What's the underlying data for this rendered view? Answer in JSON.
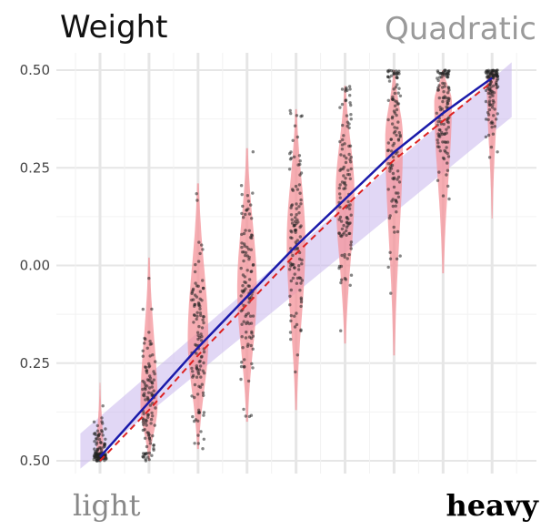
{
  "chart_data": {
    "type": "violin-scatter",
    "title": "Weight",
    "subtitle": "Quadratic",
    "xlabel_left": "light",
    "xlabel_right": "heavy",
    "ylabel": "",
    "ylim": [
      -0.5,
      0.5
    ],
    "yticks": [
      -0.5,
      -0.25,
      0.0,
      0.25,
      0.5
    ],
    "ytick_labels": [
      "0.50",
      "0.25",
      "0.00",
      "0.25",
      "0.50"
    ],
    "x_levels": [
      1,
      2,
      3,
      4,
      5,
      6,
      7,
      8,
      9
    ],
    "xlim": [
      0.1,
      10.0
    ],
    "violins": [
      {
        "x": 1,
        "center": -0.49,
        "low": -0.5,
        "high": -0.3,
        "width": 0.15
      },
      {
        "x": 2,
        "center": -0.36,
        "low": -0.5,
        "high": 0.02,
        "width": 0.35
      },
      {
        "x": 3,
        "center": -0.19,
        "low": -0.47,
        "high": 0.21,
        "width": 0.42
      },
      {
        "x": 4,
        "center": -0.06,
        "low": -0.4,
        "high": 0.3,
        "width": 0.4
      },
      {
        "x": 5,
        "center": 0.06,
        "low": -0.37,
        "high": 0.4,
        "width": 0.38
      },
      {
        "x": 6,
        "center": 0.19,
        "low": -0.2,
        "high": 0.46,
        "width": 0.38
      },
      {
        "x": 7,
        "center": 0.33,
        "low": -0.23,
        "high": 0.5,
        "width": 0.36
      },
      {
        "x": 8,
        "center": 0.42,
        "low": -0.02,
        "high": 0.5,
        "width": 0.36
      },
      {
        "x": 9,
        "center": 0.48,
        "low": 0.12,
        "high": 0.5,
        "width": 0.22
      }
    ],
    "quadratic_fit": {
      "x": [
        1,
        2,
        3,
        4,
        5,
        6,
        7,
        8,
        9
      ],
      "y": [
        -0.49,
        -0.35,
        -0.21,
        -0.08,
        0.05,
        0.17,
        0.29,
        0.39,
        0.48
      ]
    },
    "dashed_fit": {
      "x": [
        1,
        2,
        3,
        4,
        5,
        6,
        7,
        8,
        9
      ],
      "y": [
        -0.5,
        -0.37,
        -0.23,
        -0.1,
        0.03,
        0.15,
        0.27,
        0.37,
        0.47
      ]
    },
    "confidence_band": {
      "x": [
        0.6,
        9.4
      ],
      "lower": [
        -0.52,
        0.38
      ],
      "upper": [
        -0.43,
        0.52
      ]
    },
    "colors": {
      "violin": "#f4939a",
      "points": "#222222",
      "band": "#c9b6ec",
      "fit_line": "#1a1aaa",
      "dashed_line": "#dd2222",
      "grid_major": "#e6e6e6",
      "grid_minor": "#f2f2f2"
    }
  }
}
